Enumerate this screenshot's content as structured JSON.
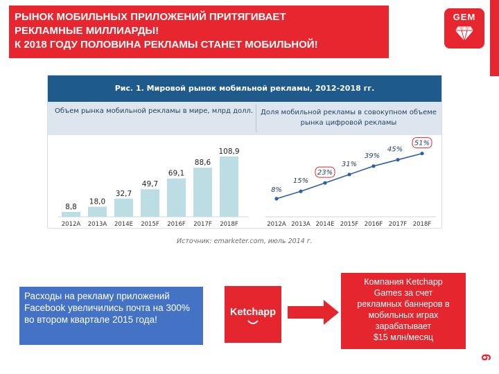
{
  "title": {
    "lines": [
      "РЫНОК МОБИЛЬНЫХ ПРИЛОЖЕНИЙ ПРИТЯГИВАЕТ",
      "РЕКЛАМНЫЕ МИЛЛИАРДЫ!",
      "К 2018 ГОДУ ПОЛОВИНА РЕКЛАМЫ СТАНЕТ МОБИЛЬНОЙ!"
    ]
  },
  "logo": {
    "text": "GEM",
    "icon": "diamond-icon"
  },
  "page_number": "9",
  "figure": {
    "header": "Рис. 1. Мировой рынок мобильной рекламы, 2012-2018 гг.",
    "left_subtitle": "Объем рынка мобильной рекламы в мире, млрд долл.",
    "right_subtitle": "Доля мобильной рекламы в совокупном объеме рынка цифровой рекламы",
    "source": "Источник: emarketer.com, июль 2014 г."
  },
  "chart_data": [
    {
      "type": "bar",
      "title": "Объем рынка мобильной рекламы в мире, млрд долл.",
      "categories": [
        "2012А",
        "2013А",
        "2014Е",
        "2015F",
        "2016F",
        "2017F",
        "2018F"
      ],
      "values": [
        8.8,
        18.0,
        32.7,
        49.7,
        69.1,
        88.6,
        108.9
      ],
      "labels": [
        "8,8",
        "18,0",
        "32,7",
        "49,7",
        "69,1",
        "88,6",
        "108,9"
      ],
      "color": "#bcdde4",
      "grid": false
    },
    {
      "type": "line",
      "title": "Доля мобильной рекламы в совокупном объеме рынка цифровой рекламы",
      "categories": [
        "2012А",
        "2013А",
        "2014Е",
        "2015F",
        "2016F",
        "2017F",
        "2018F"
      ],
      "values": [
        8,
        15,
        23,
        31,
        39,
        45,
        51
      ],
      "labels": [
        "8%",
        "15%",
        "23%",
        "31%",
        "39%",
        "45%",
        "51%"
      ],
      "highlighted": [
        "23%",
        "51%"
      ],
      "line_color": "#2b5fa8",
      "highlight_color": "#e5262f",
      "grid": false
    }
  ],
  "facebook_box": {
    "text": "Расходы на рекламу приложений Facebook увеличились почта на 300% во втором квартале 2015 года!"
  },
  "ketchapp": {
    "logo_text": "Ketchapp"
  },
  "ketchapp_box": {
    "lines": [
      "Компания Ketchapp",
      "Games за счет",
      "рекламных баннеров в",
      "мобильных играх",
      "зарабатывает",
      "$15 млн/месяц"
    ]
  },
  "colors": {
    "accent_red": "#e8262f",
    "header_blue": "#1f5a8c",
    "box_blue": "#4472c4"
  }
}
